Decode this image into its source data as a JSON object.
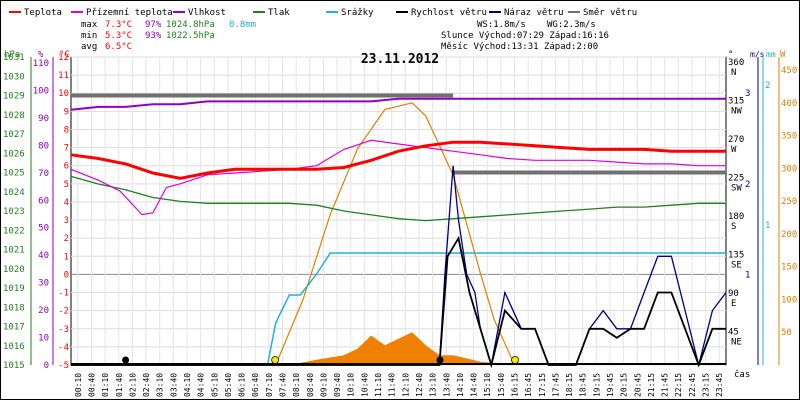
{
  "chart_data": {
    "type": "line",
    "title": "23.11.2012",
    "legend": [
      {
        "name": "Teplota",
        "color": "#ff0000"
      },
      {
        "name": "Přízemní teplota",
        "color": "#e000e0"
      },
      {
        "name": "Vlhkost",
        "color": "#9000c0"
      },
      {
        "name": "Tlak",
        "color": "#208020"
      },
      {
        "name": "Srážky",
        "color": "#20b0d8"
      },
      {
        "name": "Rychlost větru",
        "color": "#000000"
      },
      {
        "name": "Náraz větru",
        "color": "#000080"
      },
      {
        "name": "Směr větru",
        "color": "#707070"
      }
    ],
    "stats": {
      "max": {
        "label": "max",
        "temp": "7.3°C",
        "hum": "97%",
        "press": "1024.8hPa",
        "rain": "0.8mm"
      },
      "min": {
        "label": "min",
        "temp": "5.3°C",
        "hum": "93%",
        "press": "1022.5hPa"
      },
      "avg": {
        "label": "avg",
        "temp": "6.5°C"
      }
    },
    "info": {
      "ws": "WS:1.8m/s",
      "wg": "WG:2.3m/s",
      "sun": "Slunce Východ:07:29  Západ:16:16",
      "moon": "Měsíc  Východ:13:31  Západ:2:00"
    },
    "axes": {
      "hpa_unit": "hPa",
      "hum_unit": "%",
      "temp_unit": "°C",
      "dir_unit": "°",
      "wind_unit": "m/s",
      "rain_unit": "mm",
      "solar_unit": "W",
      "time_unit": "čas",
      "hpa_ticks": [
        "1031",
        "1030",
        "1029",
        "1028",
        "1027",
        "1026",
        "1025",
        "1024",
        "1023",
        "1022",
        "1021",
        "1020",
        "1019",
        "1018",
        "1017",
        "1016",
        "1015"
      ],
      "hum_ticks": [
        "110",
        "100",
        "90",
        "80",
        "70",
        "60",
        "50",
        "40",
        "30",
        "20",
        "10",
        "0"
      ],
      "temp_ticks": [
        "12",
        "11",
        "10",
        "9",
        "8",
        "7",
        "6",
        "5",
        "4",
        "3",
        "2",
        "1",
        "0",
        "-1",
        "-2",
        "-3",
        "-4",
        "-5"
      ],
      "dir_ticks": [
        {
          "v": "360",
          "d": "N"
        },
        {
          "v": "315",
          "d": "NW"
        },
        {
          "v": "270",
          "d": "W"
        },
        {
          "v": "225",
          "d": "SW"
        },
        {
          "v": "180",
          "d": "S"
        },
        {
          "v": "135",
          "d": "SE"
        },
        {
          "v": "90",
          "d": "E"
        },
        {
          "v": "45",
          "d": "NE"
        }
      ],
      "wind_ticks": [
        "3",
        "2",
        "1"
      ],
      "rain_ticks": [
        "2",
        "1"
      ],
      "solar_ticks": [
        "450",
        "400",
        "350",
        "300",
        "250",
        "200",
        "150",
        "100",
        "50"
      ],
      "time_ticks": [
        "00:10",
        "00:40",
        "01:10",
        "01:40",
        "02:10",
        "02:40",
        "03:10",
        "03:40",
        "04:10",
        "04:40",
        "05:10",
        "05:40",
        "06:10",
        "06:40",
        "07:10",
        "07:40",
        "08:10",
        "08:40",
        "09:10",
        "09:40",
        "10:10",
        "10:40",
        "11:10",
        "11:40",
        "12:10",
        "12:40",
        "13:10",
        "13:40",
        "14:10",
        "14:40",
        "15:10",
        "15:40",
        "16:15",
        "16:45",
        "17:15",
        "17:45",
        "18:15",
        "18:45",
        "19:15",
        "19:45",
        "20:15",
        "20:45",
        "21:15",
        "21:45",
        "22:15",
        "22:45",
        "23:15",
        "23:45"
      ]
    },
    "series": {
      "temperature": {
        "x": [
          0,
          1,
          2,
          3,
          4,
          5,
          6,
          7,
          8,
          9,
          10,
          11,
          12,
          13,
          14,
          15,
          16,
          17,
          18,
          19,
          20,
          21,
          22,
          23,
          24
        ],
        "y": [
          6.6,
          6.4,
          6.1,
          5.6,
          5.3,
          5.6,
          5.8,
          5.8,
          5.8,
          5.8,
          5.9,
          6.3,
          6.8,
          7.1,
          7.3,
          7.3,
          7.2,
          7.1,
          7.0,
          6.9,
          6.9,
          6.9,
          6.8,
          6.8,
          6.8
        ]
      },
      "ground_temperature": {
        "x": [
          0,
          1,
          1.8,
          2.6,
          3,
          3.5,
          4,
          5,
          6,
          7,
          8,
          9,
          10,
          11,
          12,
          13,
          14,
          15,
          16,
          17,
          18,
          19,
          20,
          21,
          22,
          23,
          24
        ],
        "y": [
          5.8,
          5.2,
          4.6,
          3.3,
          3.4,
          4.8,
          5.0,
          5.5,
          5.6,
          5.7,
          5.8,
          6.0,
          6.9,
          7.4,
          7.2,
          7.0,
          6.8,
          6.6,
          6.4,
          6.3,
          6.3,
          6.3,
          6.2,
          6.1,
          6.1,
          6.0,
          6.0
        ]
      },
      "humidity": {
        "x": [
          0,
          1,
          2,
          3,
          4,
          5,
          6,
          7,
          8,
          9,
          10,
          11,
          12,
          13,
          14,
          15,
          16,
          17,
          18,
          19,
          20,
          21,
          22,
          23,
          24
        ],
        "y": [
          93,
          94,
          94,
          95,
          95,
          96,
          96,
          96,
          96,
          96,
          96,
          96,
          97,
          97,
          97,
          97,
          97,
          97,
          97,
          97,
          97,
          97,
          97,
          97,
          97
        ]
      },
      "pressure": {
        "x": [
          0,
          1,
          2,
          3,
          4,
          5,
          6,
          7,
          8,
          9,
          10,
          11,
          12,
          13,
          14,
          15,
          16,
          17,
          18,
          19,
          20,
          21,
          22,
          23,
          24
        ],
        "y": [
          1024.8,
          1024.4,
          1024.1,
          1023.7,
          1023.5,
          1023.4,
          1023.4,
          1023.4,
          1023.4,
          1023.3,
          1023.0,
          1022.8,
          1022.6,
          1022.5,
          1022.6,
          1022.7,
          1022.8,
          1022.9,
          1023.0,
          1023.1,
          1023.2,
          1023.2,
          1023.3,
          1023.4,
          1023.4
        ]
      },
      "rain_cumulative": {
        "x": [
          0,
          7.2,
          7.5,
          8.0,
          8.4,
          9.0,
          9.5,
          24
        ],
        "y": [
          0,
          0,
          0.3,
          0.5,
          0.5,
          0.65,
          0.8,
          0.8
        ]
      },
      "wind_speed": {
        "x": [
          0,
          13.5,
          13.8,
          14.2,
          14.6,
          15.0,
          15.4,
          15.9,
          16.5,
          17.0,
          17.5,
          18.0,
          18.5,
          19.0,
          19.5,
          20.0,
          20.5,
          21.0,
          21.5,
          22.0,
          22.5,
          23.0,
          23.5,
          24
        ],
        "y": [
          0,
          0,
          1.2,
          1.4,
          0.8,
          0.4,
          0,
          0.6,
          0.4,
          0.4,
          0,
          0,
          0,
          0.4,
          0.4,
          0.3,
          0.4,
          0.4,
          0.8,
          0.8,
          0.4,
          0,
          0.4,
          0.4
        ]
      },
      "wind_gust": {
        "x": [
          0,
          13.5,
          13.7,
          14.0,
          14.2,
          14.5,
          14.8,
          15.0,
          15.4,
          15.9,
          16.5,
          17.0,
          17.5,
          18.0,
          18.5,
          19.0,
          19.5,
          20.0,
          20.5,
          21.0,
          21.5,
          22.0,
          22.5,
          23.0,
          23.5,
          24
        ],
        "y": [
          0,
          0,
          1.0,
          2.2,
          1.6,
          1.0,
          0.8,
          0.4,
          0,
          0.8,
          0.4,
          0.4,
          0,
          0,
          0,
          0.4,
          0.6,
          0.4,
          0.4,
          0.8,
          1.2,
          1.2,
          0.6,
          0,
          0.6,
          0.8
        ]
      },
      "wind_direction": {
        "segments": [
          {
            "x": [
              0,
              14
            ],
            "deg": [
              315,
              315
            ]
          },
          {
            "x": [
              14,
              24
            ],
            "deg": [
              225,
              225
            ]
          }
        ]
      },
      "solar": {
        "x": [
          7.5,
          8.5,
          9.5,
          10.5,
          11.5,
          12.5,
          13.0,
          14.0,
          15.0,
          15.5,
          16.25
        ],
        "y": [
          0,
          100,
          230,
          330,
          390,
          400,
          380,
          290,
          140,
          70,
          0
        ]
      },
      "solar_measured": {
        "x": [
          8.0,
          9.0,
          10.0,
          10.5,
          11.0,
          11.5,
          12.0,
          12.5,
          13.0,
          13.5,
          14.0,
          14.5,
          15.0,
          15.5,
          16.0
        ],
        "y": [
          0,
          8,
          15,
          25,
          45,
          30,
          40,
          50,
          30,
          15,
          15,
          10,
          5,
          3,
          0
        ]
      }
    }
  }
}
